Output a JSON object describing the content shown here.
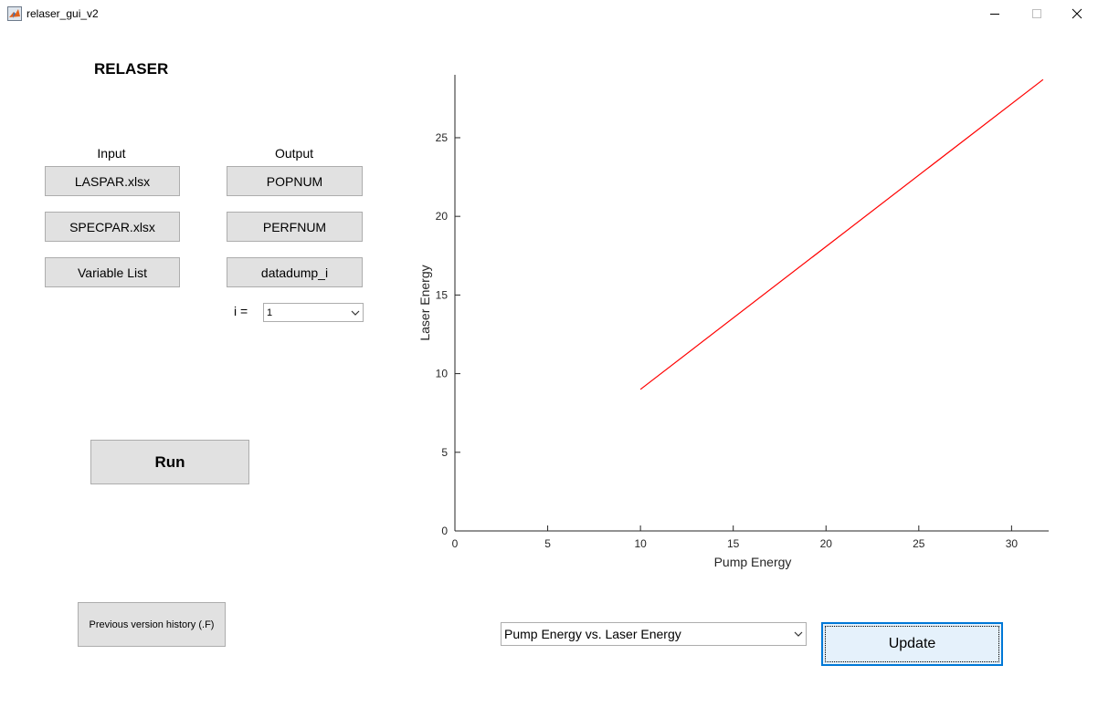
{
  "window": {
    "title": "relaser_gui_v2",
    "controls": {
      "minimize": "minimize",
      "maximize": "maximize",
      "close": "close"
    }
  },
  "app": {
    "heading": "RELASER"
  },
  "input": {
    "label": "Input",
    "buttons": [
      "LASPAR.xlsx",
      "SPECPAR.xlsx",
      "Variable List"
    ]
  },
  "output": {
    "label": "Output",
    "buttons": [
      "POPNUM",
      "PERFNUM",
      "datadump_i"
    ],
    "index_label": "i =",
    "index_value": "1"
  },
  "run": {
    "label": "Run"
  },
  "history": {
    "label": "Previous version history (.F)"
  },
  "plot_select": {
    "value": "Pump Energy vs. Laser Energy"
  },
  "update": {
    "label": "Update"
  },
  "colors": {
    "line": "#ff0000",
    "button_bg": "#e1e1e1",
    "update_bg": "#e5f1fb",
    "focus": "#0078d7"
  },
  "chart_data": {
    "type": "line",
    "title": "",
    "xlabel": "Pump Energy",
    "ylabel": "Laser Energy",
    "xlim": [
      0,
      32
    ],
    "ylim": [
      0,
      29
    ],
    "xticks": [
      0,
      5,
      10,
      15,
      20,
      25,
      30
    ],
    "yticks": [
      0,
      5,
      10,
      15,
      20,
      25
    ],
    "grid": false,
    "series": [
      {
        "name": "Pump Energy vs. Laser Energy",
        "color": "#ff0000",
        "x": [
          10,
          31.7
        ],
        "y": [
          9.0,
          28.7
        ]
      }
    ]
  }
}
